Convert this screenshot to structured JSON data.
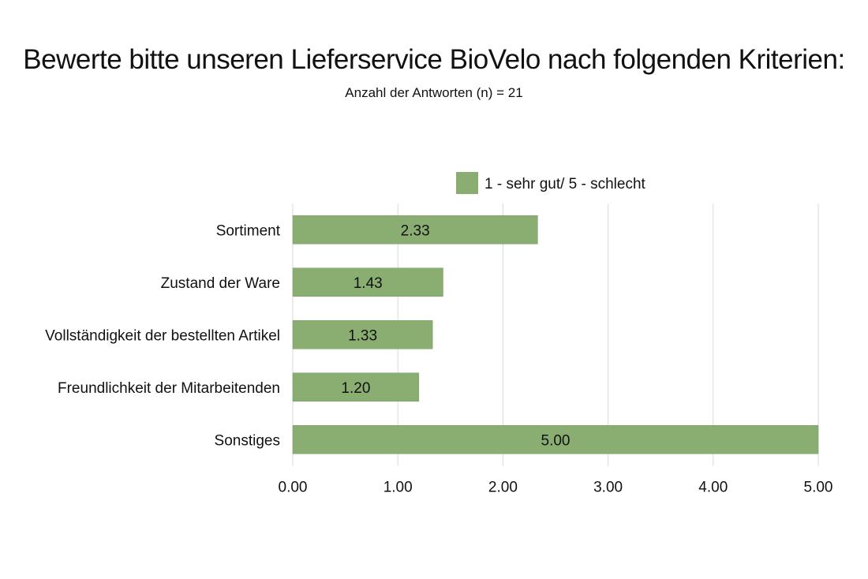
{
  "chart_data": {
    "type": "bar",
    "orientation": "horizontal",
    "title": "Bewerte bitte unseren Lieferservice BioVelo nach folgenden Kriterien:",
    "subtitle": "Anzahl der Antworten (n) = 21",
    "categories": [
      "Sortiment",
      "Zustand der Ware",
      "Vollständigkeit der bestellten Artikel",
      "Freundlichkeit der Mitarbeitenden",
      "Sonstiges"
    ],
    "series": [
      {
        "name": "1 - sehr gut/ 5 - schlecht",
        "values": [
          2.33,
          1.43,
          1.33,
          1.2,
          5.0
        ],
        "value_labels": [
          "2.33",
          "1.43",
          "1.33",
          "1.20",
          "5.00"
        ]
      }
    ],
    "xlim": [
      0,
      5
    ],
    "x_ticks": [
      "0.00",
      "1.00",
      "2.00",
      "3.00",
      "4.00",
      "5.00"
    ],
    "grid": "vertical",
    "legend_position": "top",
    "colors": {
      "bar": "#8aad72",
      "grid": "#d9d9d9",
      "text": "#111111"
    }
  }
}
